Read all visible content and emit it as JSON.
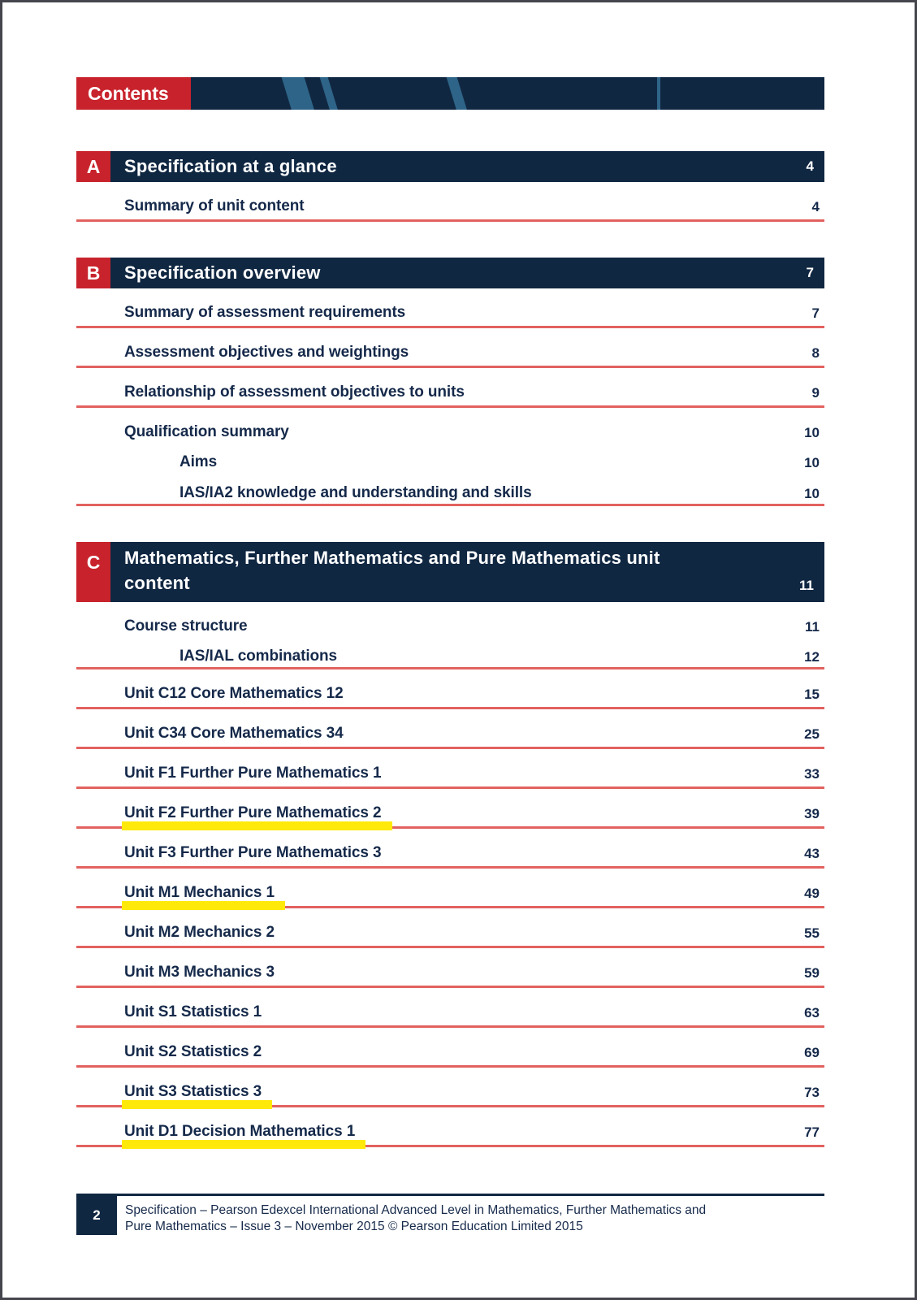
{
  "page": {
    "banner": {
      "label": "Contents"
    },
    "footer": {
      "page_number": "2",
      "line1": "Specification – Pearson Edexcel International Advanced Level in Mathematics, Further Mathematics and",
      "line2": "Pure Mathematics – Issue 3 – November 2015 © Pearson Education Limited 2015"
    },
    "colors": {
      "navy": "#102742",
      "red": "#C8232C",
      "rule_red": "#E2625F",
      "stripe_blue": "#2E6487",
      "highlight_yellow": "#FFE90A",
      "text_navy": "#15294A"
    }
  },
  "sections": [
    {
      "letter": "A",
      "title": "Specification at a glance",
      "page": "4",
      "tall": false,
      "items": [
        {
          "label": "Summary of unit content",
          "page": "4",
          "indent": false,
          "tight": false,
          "underline": true,
          "highlight": false
        }
      ]
    },
    {
      "letter": "B",
      "title": "Specification overview",
      "page": "7",
      "tall": false,
      "items": [
        {
          "label": "Summary of assessment requirements",
          "page": "7",
          "indent": false,
          "tight": false,
          "underline": true,
          "highlight": false
        },
        {
          "label": "Assessment objectives and weightings",
          "page": "8",
          "indent": false,
          "tight": false,
          "underline": true,
          "highlight": false
        },
        {
          "label": "Relationship of assessment objectives to units",
          "page": "9",
          "indent": false,
          "tight": false,
          "underline": true,
          "highlight": false
        },
        {
          "label": "Qualification summary",
          "page": "10",
          "indent": false,
          "tight": false,
          "underline": false,
          "highlight": false
        },
        {
          "label": "Aims",
          "page": "10",
          "indent": true,
          "tight": true,
          "underline": false,
          "highlight": false
        },
        {
          "label": "IAS/IA2 knowledge and understanding and skills",
          "page": "10",
          "indent": true,
          "tight": true,
          "underline": true,
          "highlight": false
        }
      ]
    },
    {
      "letter": "C",
      "title": "Mathematics, Further Mathematics and Pure Mathematics unit content",
      "page": "11",
      "tall": true,
      "items": [
        {
          "label": "Course structure",
          "page": "11",
          "indent": false,
          "tight": false,
          "underline": false,
          "highlight": false
        },
        {
          "label": "IAS/IAL combinations",
          "page": "12",
          "indent": true,
          "tight": true,
          "underline": true,
          "highlight": false
        },
        {
          "label": "Unit C12 Core Mathematics 12",
          "page": "15",
          "indent": false,
          "tight": false,
          "underline": true,
          "highlight": false
        },
        {
          "label": "Unit C34 Core Mathematics 34",
          "page": "25",
          "indent": false,
          "tight": false,
          "underline": true,
          "highlight": false
        },
        {
          "label": "Unit F1 Further Pure Mathematics 1",
          "page": "33",
          "indent": false,
          "tight": false,
          "underline": true,
          "highlight": false
        },
        {
          "label": "Unit F2 Further Pure Mathematics 2",
          "page": "39",
          "indent": false,
          "tight": false,
          "underline": true,
          "highlight": true
        },
        {
          "label": "Unit F3 Further Pure Mathematics 3",
          "page": "43",
          "indent": false,
          "tight": false,
          "underline": true,
          "highlight": false
        },
        {
          "label": "Unit M1 Mechanics 1",
          "page": "49",
          "indent": false,
          "tight": false,
          "underline": true,
          "highlight": true
        },
        {
          "label": "Unit M2 Mechanics 2",
          "page": "55",
          "indent": false,
          "tight": false,
          "underline": true,
          "highlight": false
        },
        {
          "label": "Unit M3 Mechanics 3",
          "page": "59",
          "indent": false,
          "tight": false,
          "underline": true,
          "highlight": false
        },
        {
          "label": "Unit S1 Statistics 1",
          "page": "63",
          "indent": false,
          "tight": false,
          "underline": true,
          "highlight": false
        },
        {
          "label": "Unit S2 Statistics 2",
          "page": "69",
          "indent": false,
          "tight": false,
          "underline": true,
          "highlight": false
        },
        {
          "label": "Unit S3 Statistics 3",
          "page": "73",
          "indent": false,
          "tight": false,
          "underline": true,
          "highlight": true
        },
        {
          "label": "Unit D1 Decision Mathematics 1",
          "page": "77",
          "indent": false,
          "tight": false,
          "underline": true,
          "highlight": true
        }
      ]
    }
  ]
}
